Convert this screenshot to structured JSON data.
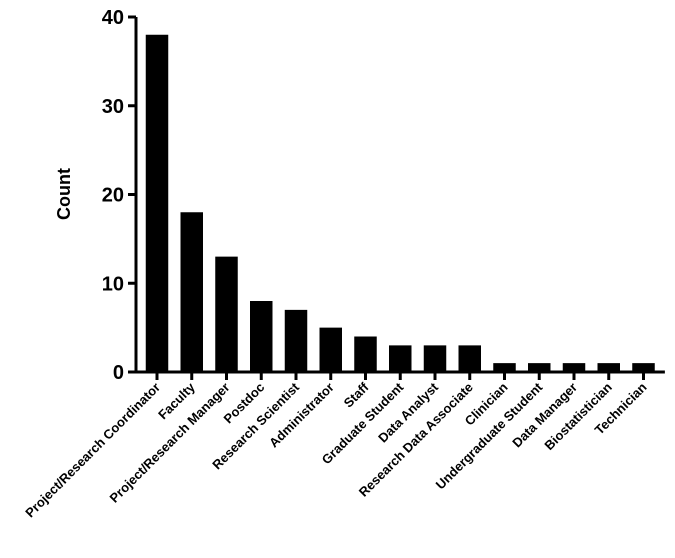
{
  "chart_data": {
    "type": "bar",
    "title": "",
    "xlabel": "",
    "ylabel": "Count",
    "ylim": [
      0,
      40
    ],
    "yticks": [
      0,
      10,
      20,
      30,
      40
    ],
    "grid": false,
    "legend": "none",
    "categories": [
      "Project/Research Coordinator",
      "Faculty",
      "Project/Research Manager",
      "Postdoc",
      "Research Scientist",
      "Administrator",
      "Staff",
      "Graduate Student",
      "Data Analyst",
      "Research Data Associate",
      "Clinician",
      "Undergraduate Student",
      "Data Manager",
      "Biostatistician",
      "Technician"
    ],
    "values": [
      38,
      18,
      13,
      8,
      7,
      5,
      4,
      3,
      3,
      3,
      1,
      1,
      1,
      1,
      1
    ],
    "bar_color": "#000000"
  }
}
